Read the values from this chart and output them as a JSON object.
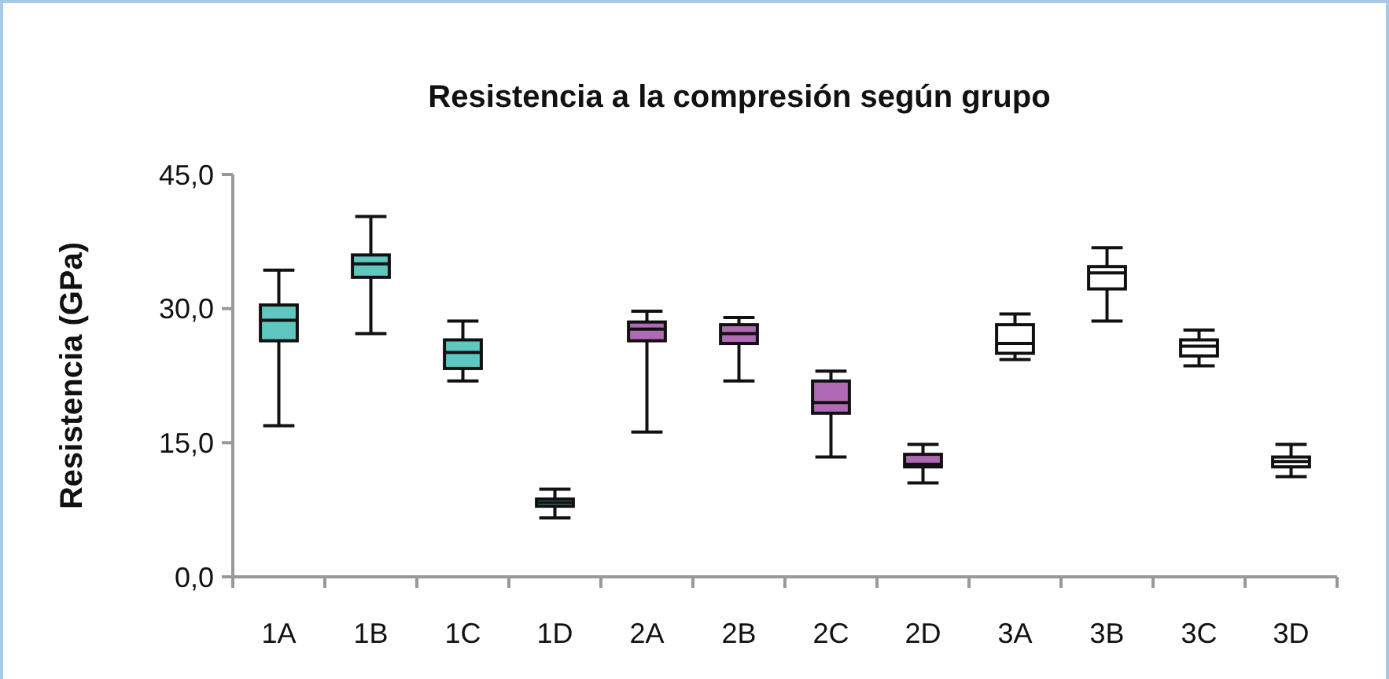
{
  "chart_data": {
    "type": "box",
    "title": "Resistencia a la compresión según grupo",
    "ylabel": "Resistencia (GPa)",
    "categories": [
      "1A",
      "1B",
      "1C",
      "1D",
      "2A",
      "2B",
      "2C",
      "2D",
      "3A",
      "3B",
      "3C",
      "3D"
    ],
    "colors": [
      "#5ec8c0",
      "#5ec8c0",
      "#5ec8c0",
      "#5ec8c0",
      "#b06ab3",
      "#b06ab3",
      "#b06ab3",
      "#b06ab3",
      "#ffffff",
      "#ffffff",
      "#ffffff",
      "#ffffff"
    ],
    "boxes": [
      {
        "low": 16.9,
        "q1": 26.4,
        "median": 28.7,
        "q3": 30.4,
        "high": 34.3
      },
      {
        "low": 27.2,
        "q1": 33.5,
        "median": 35.0,
        "q3": 36.0,
        "high": 40.3
      },
      {
        "low": 21.9,
        "q1": 23.3,
        "median": 25.1,
        "q3": 26.5,
        "high": 28.6
      },
      {
        "low": 6.6,
        "q1": 7.9,
        "median": 8.3,
        "q3": 8.7,
        "high": 9.8
      },
      {
        "low": 16.2,
        "q1": 26.4,
        "median": 27.7,
        "q3": 28.5,
        "high": 29.7
      },
      {
        "low": 21.9,
        "q1": 26.1,
        "median": 27.2,
        "q3": 28.2,
        "high": 29.0
      },
      {
        "low": 13.4,
        "q1": 18.3,
        "median": 19.5,
        "q3": 21.9,
        "high": 23.0
      },
      {
        "low": 10.5,
        "q1": 12.3,
        "median": 12.6,
        "q3": 13.7,
        "high": 14.8
      },
      {
        "low": 24.3,
        "q1": 25.0,
        "median": 26.1,
        "q3": 28.2,
        "high": 29.4
      },
      {
        "low": 28.6,
        "q1": 32.2,
        "median": 34.0,
        "q3": 34.7,
        "high": 36.8
      },
      {
        "low": 23.6,
        "q1": 24.7,
        "median": 25.8,
        "q3": 26.5,
        "high": 27.6
      },
      {
        "low": 11.2,
        "q1": 12.3,
        "median": 12.9,
        "q3": 13.4,
        "high": 14.8
      }
    ],
    "ylim": [
      0,
      45
    ],
    "yticks": [
      {
        "value": 0,
        "label": "0,0"
      },
      {
        "value": 15,
        "label": "15,0"
      },
      {
        "value": 30,
        "label": "30,0"
      },
      {
        "value": 45,
        "label": "45,0"
      }
    ],
    "grid": false
  }
}
